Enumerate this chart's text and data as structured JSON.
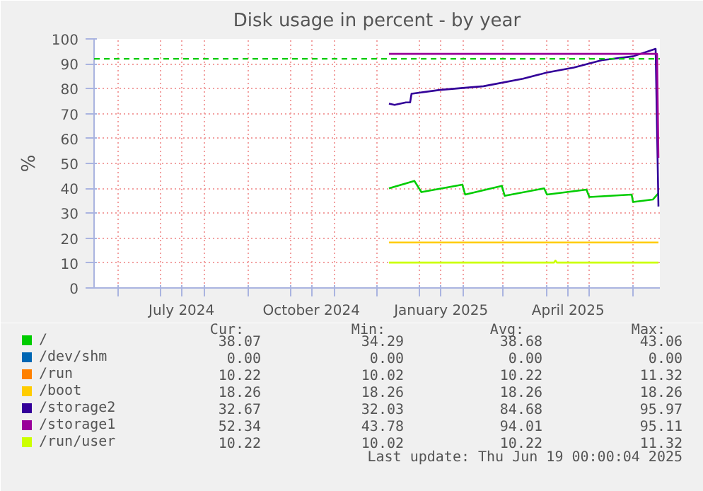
{
  "chart_data": {
    "type": "line",
    "title": "Disk usage in percent - by year",
    "ylabel": "%",
    "xlim": [
      "2024-05-15",
      "2025-06-20"
    ],
    "ylim": [
      0,
      100
    ],
    "yticks": [
      0,
      10,
      20,
      30,
      40,
      50,
      60,
      70,
      80,
      90,
      100
    ],
    "xticks": [
      {
        "value": "2024-06-01",
        "label": null
      },
      {
        "value": "2024-07-01",
        "label": null
      },
      {
        "value": "2024-07-16",
        "label": "July 2024"
      },
      {
        "value": "2024-08-01",
        "label": null
      },
      {
        "value": "2024-09-01",
        "label": null
      },
      {
        "value": "2024-10-01",
        "label": null
      },
      {
        "value": "2024-10-16",
        "label": "October 2024"
      },
      {
        "value": "2024-11-01",
        "label": null
      },
      {
        "value": "2024-12-01",
        "label": null
      },
      {
        "value": "2025-01-01",
        "label": null
      },
      {
        "value": "2025-01-16",
        "label": "January 2025"
      },
      {
        "value": "2025-02-01",
        "label": null
      },
      {
        "value": "2025-03-01",
        "label": null
      },
      {
        "value": "2025-04-01",
        "label": null
      },
      {
        "value": "2025-04-16",
        "label": "April 2025"
      },
      {
        "value": "2025-05-01",
        "label": null
      },
      {
        "value": "2025-06-01",
        "label": null
      }
    ],
    "grid": true,
    "legend": "bottom",
    "ref_lines": [
      {
        "axis": "y",
        "value": 92,
        "color": "#00cc00",
        "line_style": "dashed"
      }
    ],
    "series": [
      {
        "name": "/",
        "color": "#00cc00",
        "x": [
          "2024-12-10",
          "2024-12-28",
          "2025-01-02",
          "2025-01-31",
          "2025-02-02",
          "2025-02-28",
          "2025-03-02",
          "2025-03-30",
          "2025-04-01",
          "2025-04-29",
          "2025-05-01",
          "2025-05-31",
          "2025-06-01",
          "2025-06-15",
          "2025-06-19"
        ],
        "values": [
          40,
          43,
          38.5,
          41.5,
          37.5,
          41,
          37,
          40,
          37.5,
          39.5,
          36.5,
          37.5,
          34.5,
          35.5,
          38
        ]
      },
      {
        "name": "/dev/shm",
        "color": "#0066b3"
      },
      {
        "name": "/run",
        "color": "#ff8000"
      },
      {
        "name": "/boot",
        "color": "#ffcc00",
        "x": [
          "2024-12-10",
          "2025-06-19"
        ],
        "values": [
          18.26,
          18.26
        ]
      },
      {
        "name": "/storage2",
        "color": "#330099",
        "x": [
          "2024-12-10",
          "2024-12-14",
          "2024-12-22",
          "2024-12-25",
          "2024-12-26",
          "2025-01-15",
          "2025-02-15",
          "2025-03-15",
          "2025-04-01",
          "2025-04-20",
          "2025-05-10",
          "2025-06-01",
          "2025-06-17",
          "2025-06-19"
        ],
        "values": [
          74,
          73.5,
          74.5,
          74.5,
          78,
          79.5,
          81,
          84,
          86.5,
          88.5,
          91.5,
          93,
          96,
          32.7
        ]
      },
      {
        "name": "/storage1",
        "color": "#990099",
        "x": [
          "2024-12-10",
          "2025-06-18",
          "2025-06-19"
        ],
        "values": [
          94,
          94,
          52.3
        ]
      },
      {
        "name": "/run/user",
        "color": "#ccff00",
        "x": [
          "2024-12-10",
          "2025-04-06",
          "2025-04-07",
          "2025-04-08",
          "2025-06-19"
        ],
        "values": [
          10.2,
          10.2,
          11,
          10.2,
          10.2
        ]
      }
    ],
    "annotations": [
      "Cur:",
      "Min:",
      "Avg:",
      "Max:",
      "38.07",
      "34.29",
      "38.68",
      "43.06",
      "0.00",
      "0.00",
      "0.00",
      "0.00",
      "10.22",
      "10.02",
      "10.22",
      "11.32",
      "18.26",
      "18.26",
      "18.26",
      "18.26",
      "32.67",
      "32.03",
      "84.68",
      "95.97",
      "52.34",
      "43.78",
      "94.01",
      "95.11",
      "10.22",
      "10.02",
      "10.22",
      "11.32",
      "Last update: Thu Jun 19 00:00:04 2025"
    ]
  }
}
